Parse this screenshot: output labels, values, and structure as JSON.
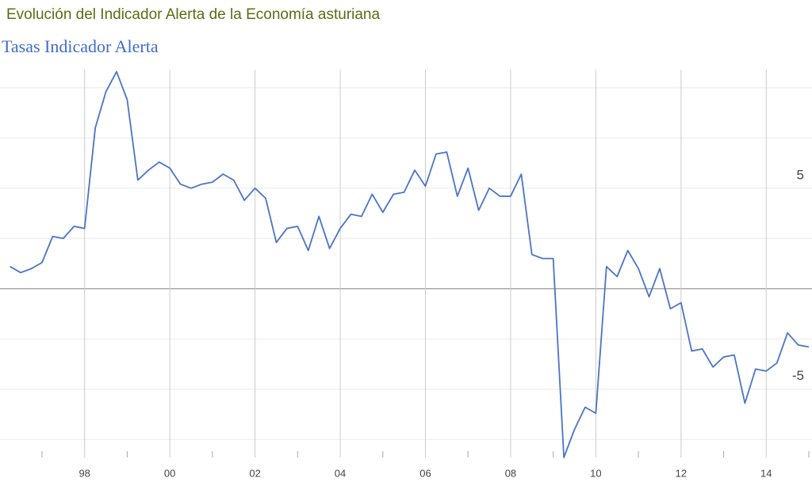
{
  "chart_data": {
    "type": "line",
    "title": "Evolución del Indicador Alerta de la Economía asturiana",
    "subtitle": "Tasas Indicador Alerta",
    "x": [
      1996.25,
      1996.5,
      1996.75,
      1997,
      1997.25,
      1997.5,
      1997.75,
      1998,
      1998.25,
      1998.5,
      1998.75,
      1999,
      1999.25,
      1999.5,
      1999.75,
      2000,
      2000.25,
      2000.5,
      2000.75,
      2001,
      2001.25,
      2001.5,
      2001.75,
      2002,
      2002.25,
      2002.5,
      2002.75,
      2003,
      2003.25,
      2003.5,
      2003.75,
      2004,
      2004.25,
      2004.5,
      2004.75,
      2005,
      2005.25,
      2005.5,
      2005.75,
      2006,
      2006.25,
      2006.5,
      2006.75,
      2007,
      2007.25,
      2007.5,
      2007.75,
      2008,
      2008.25,
      2008.5,
      2008.75,
      2009,
      2009.25,
      2009.5,
      2009.75,
      2010,
      2010.25,
      2010.5,
      2010.75,
      2011,
      2011.25,
      2011.5,
      2011.75,
      2012,
      2012.25,
      2012.5,
      2012.75,
      2013,
      2013.25,
      2013.5,
      2013.75,
      2014,
      2014.25,
      2014.5,
      2014.75,
      2015
    ],
    "series": [
      {
        "name": "Tasas Indicador Alerta",
        "color": "#4a74c9",
        "values": [
          1.1,
          0.8,
          1.0,
          1.3,
          2.6,
          2.5,
          3.1,
          3.0,
          8.0,
          9.8,
          10.8,
          9.4,
          5.4,
          5.9,
          6.3,
          6.0,
          5.2,
          5.0,
          5.2,
          5.3,
          5.7,
          5.4,
          4.4,
          5.0,
          4.5,
          2.3,
          3.0,
          3.1,
          1.9,
          3.6,
          2.0,
          3.0,
          3.7,
          3.6,
          4.7,
          3.8,
          4.7,
          4.8,
          5.9,
          5.1,
          6.7,
          6.8,
          4.6,
          6.0,
          3.9,
          5.0,
          4.6,
          4.6,
          5.7,
          1.7,
          1.5,
          1.5,
          -8.4,
          -7.0,
          -5.9,
          -6.2,
          1.1,
          0.6,
          1.9,
          1.0,
          -0.4,
          1.0,
          -1.0,
          -0.7,
          -3.1,
          -3.0,
          -3.9,
          -3.4,
          -3.3,
          -5.7,
          -4.0,
          -4.1,
          -3.7,
          -2.2,
          -2.8,
          -2.9
        ]
      }
    ],
    "xlim": [
      1996.2,
      2015.0
    ],
    "xticks": [
      {
        "value": 1998,
        "label": "98"
      },
      {
        "value": 2000,
        "label": "00"
      },
      {
        "value": 2002,
        "label": "02"
      },
      {
        "value": 2004,
        "label": "04"
      },
      {
        "value": 2006,
        "label": "06"
      },
      {
        "value": 2008,
        "label": "08"
      },
      {
        "value": 2010,
        "label": "10"
      },
      {
        "value": 2012,
        "label": "12"
      },
      {
        "value": 2014,
        "label": "14"
      }
    ],
    "xminor_ticks": [
      1997,
      1999,
      2001,
      2003,
      2005,
      2007,
      2009,
      2011,
      2013,
      2015
    ],
    "ylim": [
      -8.4,
      10.9
    ],
    "yticks": [
      -5,
      5
    ],
    "ygrid": [
      -7.5,
      -5,
      -2.5,
      0,
      2.5,
      5,
      7.5,
      10
    ],
    "grid": true
  }
}
